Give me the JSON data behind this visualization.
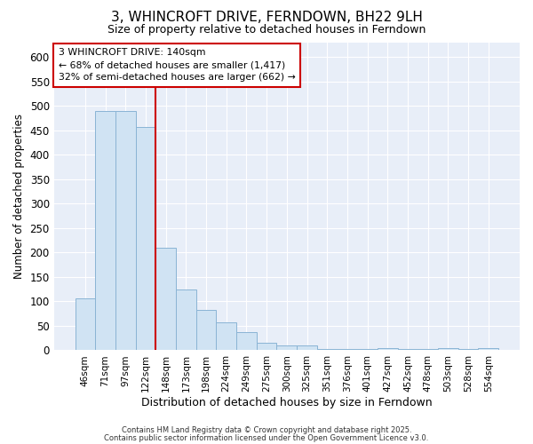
{
  "title": "3, WHINCROFT DRIVE, FERNDOWN, BH22 9LH",
  "subtitle": "Size of property relative to detached houses in Ferndown",
  "xlabel": "Distribution of detached houses by size in Ferndown",
  "ylabel": "Number of detached properties",
  "bar_labels": [
    "46sqm",
    "71sqm",
    "97sqm",
    "122sqm",
    "148sqm",
    "173sqm",
    "198sqm",
    "224sqm",
    "249sqm",
    "275sqm",
    "300sqm",
    "325sqm",
    "351sqm",
    "376sqm",
    "401sqm",
    "427sqm",
    "452sqm",
    "478sqm",
    "503sqm",
    "528sqm",
    "554sqm"
  ],
  "bar_heights": [
    107,
    490,
    490,
    457,
    210,
    125,
    83,
    58,
    38,
    15,
    10,
    10,
    3,
    3,
    3,
    5,
    3,
    3,
    5,
    3,
    5
  ],
  "bar_color": "#d0e3f3",
  "bar_edge_color": "#8ab4d4",
  "vline_x_index": 4,
  "vline_color": "#cc0000",
  "annotation_text": "3 WHINCROFT DRIVE: 140sqm\n← 68% of detached houses are smaller (1,417)\n32% of semi-detached houses are larger (662) →",
  "annotation_box_facecolor": "white",
  "annotation_box_edgecolor": "#cc0000",
  "ylim": [
    0,
    630
  ],
  "yticks": [
    0,
    50,
    100,
    150,
    200,
    250,
    300,
    350,
    400,
    450,
    500,
    550,
    600
  ],
  "background_color": "#ffffff",
  "plot_bg_color": "#e8eef8",
  "grid_color": "#ffffff",
  "title_fontsize": 11,
  "subtitle_fontsize": 9,
  "footer_line1": "Contains HM Land Registry data © Crown copyright and database right 2025.",
  "footer_line2": "Contains public sector information licensed under the Open Government Licence v3.0."
}
